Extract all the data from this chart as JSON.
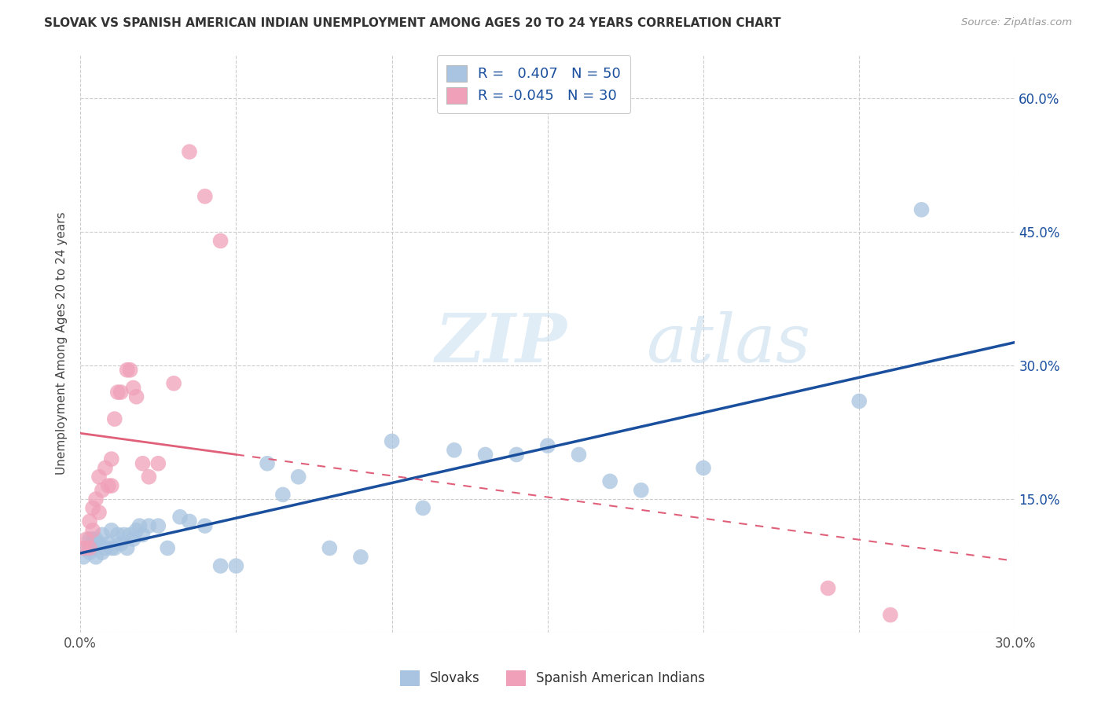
{
  "title": "SLOVAK VS SPANISH AMERICAN INDIAN UNEMPLOYMENT AMONG AGES 20 TO 24 YEARS CORRELATION CHART",
  "source": "Source: ZipAtlas.com",
  "ylabel": "Unemployment Among Ages 20 to 24 years",
  "xlim": [
    0.0,
    0.3
  ],
  "ylim": [
    0.0,
    0.65
  ],
  "xtick_positions": [
    0.0,
    0.05,
    0.1,
    0.15,
    0.2,
    0.25,
    0.3
  ],
  "xtick_labels": [
    "0.0%",
    "",
    "",
    "",
    "",
    "",
    "30.0%"
  ],
  "ytick_positions": [
    0.0,
    0.15,
    0.3,
    0.45,
    0.6
  ],
  "ytick_labels": [
    "",
    "15.0%",
    "30.0%",
    "45.0%",
    "60.0%"
  ],
  "blue_color": "#a8c4e0",
  "blue_line_color": "#1a4f9e",
  "pink_color": "#f0a0b8",
  "pink_line_color": "#e0607a",
  "legend_blue_label": "Slovaks",
  "legend_pink_label": "Spanish American Indians",
  "R_blue": 0.407,
  "N_blue": 50,
  "R_pink": -0.045,
  "N_pink": 30,
  "watermark_zip": "ZIP",
  "watermark_atlas": "atlas",
  "blue_x": [
    0.001,
    0.002,
    0.003,
    0.003,
    0.004,
    0.004,
    0.005,
    0.005,
    0.006,
    0.007,
    0.007,
    0.008,
    0.009,
    0.01,
    0.01,
    0.011,
    0.012,
    0.013,
    0.014,
    0.015,
    0.016,
    0.017,
    0.018,
    0.019,
    0.02,
    0.022,
    0.025,
    0.028,
    0.032,
    0.035,
    0.04,
    0.045,
    0.05,
    0.06,
    0.065,
    0.07,
    0.08,
    0.09,
    0.1,
    0.11,
    0.12,
    0.13,
    0.14,
    0.15,
    0.16,
    0.17,
    0.18,
    0.2,
    0.25,
    0.27
  ],
  "blue_y": [
    0.085,
    0.095,
    0.09,
    0.105,
    0.095,
    0.105,
    0.085,
    0.105,
    0.1,
    0.09,
    0.11,
    0.095,
    0.1,
    0.095,
    0.115,
    0.095,
    0.11,
    0.1,
    0.11,
    0.095,
    0.11,
    0.105,
    0.115,
    0.12,
    0.11,
    0.12,
    0.12,
    0.095,
    0.13,
    0.125,
    0.12,
    0.075,
    0.075,
    0.19,
    0.155,
    0.175,
    0.095,
    0.085,
    0.215,
    0.14,
    0.205,
    0.2,
    0.2,
    0.21,
    0.2,
    0.17,
    0.16,
    0.185,
    0.26,
    0.475
  ],
  "pink_x": [
    0.001,
    0.002,
    0.003,
    0.003,
    0.004,
    0.004,
    0.005,
    0.006,
    0.006,
    0.007,
    0.008,
    0.009,
    0.01,
    0.01,
    0.011,
    0.012,
    0.013,
    0.015,
    0.016,
    0.017,
    0.018,
    0.02,
    0.022,
    0.025,
    0.03,
    0.035,
    0.04,
    0.045,
    0.24,
    0.26
  ],
  "pink_y": [
    0.095,
    0.105,
    0.095,
    0.125,
    0.115,
    0.14,
    0.15,
    0.135,
    0.175,
    0.16,
    0.185,
    0.165,
    0.165,
    0.195,
    0.24,
    0.27,
    0.27,
    0.295,
    0.295,
    0.275,
    0.265,
    0.19,
    0.175,
    0.19,
    0.28,
    0.54,
    0.49,
    0.44,
    0.05,
    0.02
  ]
}
